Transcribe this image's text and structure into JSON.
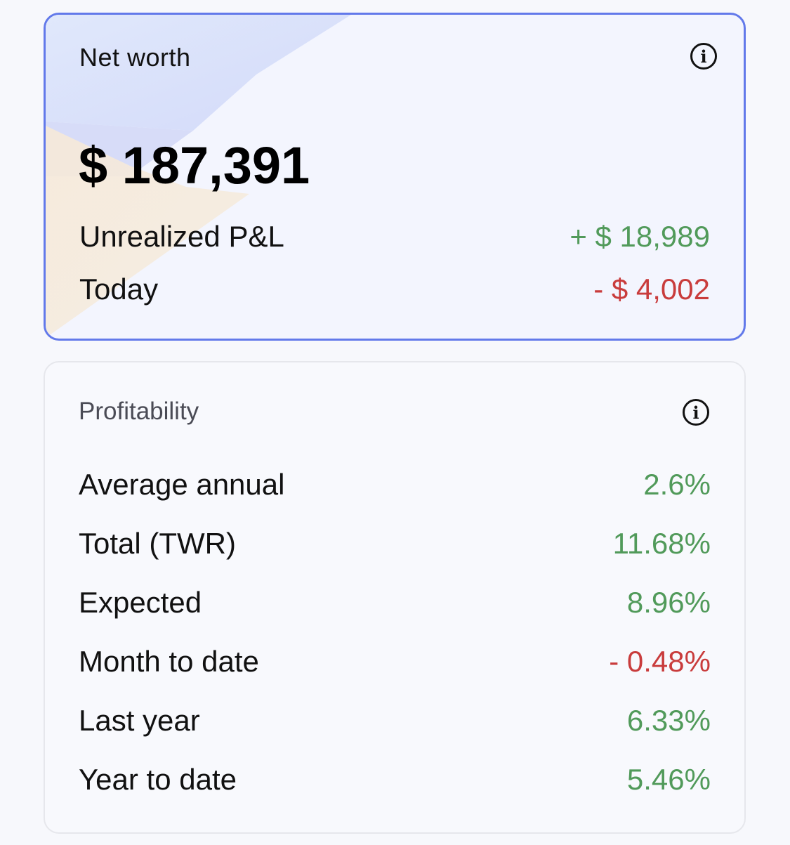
{
  "net_worth": {
    "title": "Net worth",
    "amount": "$ 187,391",
    "rows": [
      {
        "label": "Unrealized P&L",
        "value": "+ $ 18,989",
        "trend": "positive"
      },
      {
        "label": "Today",
        "value": "- $ 4,002",
        "trend": "negative"
      }
    ],
    "info_icon": "info-icon",
    "info_glyph": "i",
    "accent": "#6279ea"
  },
  "profitability": {
    "title": "Profitability",
    "info_icon": "info-icon",
    "info_glyph": "i",
    "rows": [
      {
        "label": "Average annual",
        "value": "2.6%",
        "trend": "positive"
      },
      {
        "label": "Total (TWR)",
        "value": "11.68%",
        "trend": "positive"
      },
      {
        "label": "Expected",
        "value": "8.96%",
        "trend": "positive"
      },
      {
        "label": "Month to date",
        "value": "- 0.48%",
        "trend": "negative"
      },
      {
        "label": "Last year",
        "value": "6.33%",
        "trend": "positive"
      },
      {
        "label": "Year to date",
        "value": "5.46%",
        "trend": "positive"
      }
    ]
  },
  "colors": {
    "positive": "#519a5a",
    "negative": "#c93c3c"
  }
}
